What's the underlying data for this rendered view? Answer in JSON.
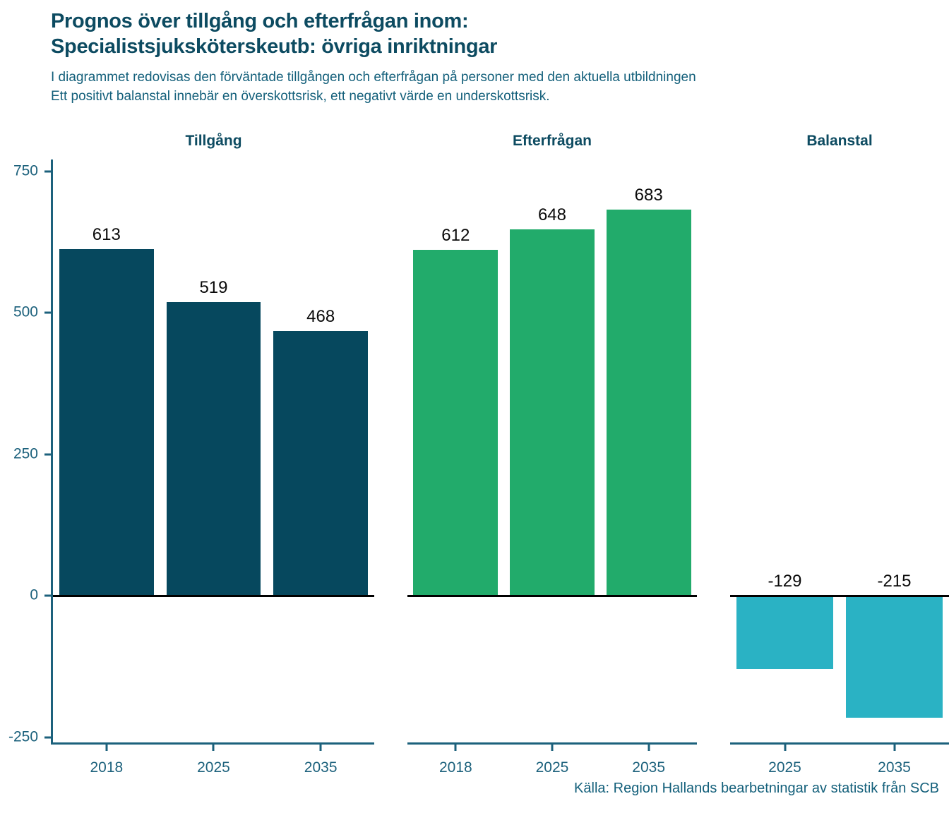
{
  "header": {
    "title_line1": "Prognos över tillgång och efterfrågan inom:",
    "title_line2": "Specialistsjuksköterskeutb: övriga inriktningar",
    "subtitle_line1": "I diagrammet redovisas den förväntade tillgången och efterfrågan på personer med den aktuella utbildningen",
    "subtitle_line2": "Ett positivt balanstal innebär en överskottsrisk, ett negativt värde en underskottsrisk."
  },
  "chart_data": {
    "type": "bar",
    "facets": [
      {
        "title": "Tillgång",
        "color": "#06485e",
        "categories": [
          "2018",
          "2025",
          "2035"
        ],
        "values": [
          613,
          519,
          468
        ]
      },
      {
        "title": "Efterfrågan",
        "color": "#22ab6b",
        "categories": [
          "2018",
          "2025",
          "2035"
        ],
        "values": [
          612,
          648,
          683
        ]
      },
      {
        "title": "Balanstal",
        "color": "#2ab2c4",
        "categories": [
          "2025",
          "2035"
        ],
        "values": [
          -129,
          -215
        ]
      }
    ],
    "y_ticks": [
      750,
      500,
      250,
      0,
      -250
    ],
    "ylim": [
      -259,
      771
    ],
    "grid": false,
    "zero_line": true,
    "legend": "none",
    "value_labels": "above bars; negative values labeled above the zero line"
  },
  "footer": {
    "source": "Källa: Region Hallands bearbetningar av statistik från SCB"
  },
  "colors": {
    "title": "#0d4b61",
    "subtitle": "#14607b",
    "axis": "#1c617c",
    "zero_line": "#000000",
    "value_label": "#0a0a0a",
    "background": "#ffffff"
  }
}
